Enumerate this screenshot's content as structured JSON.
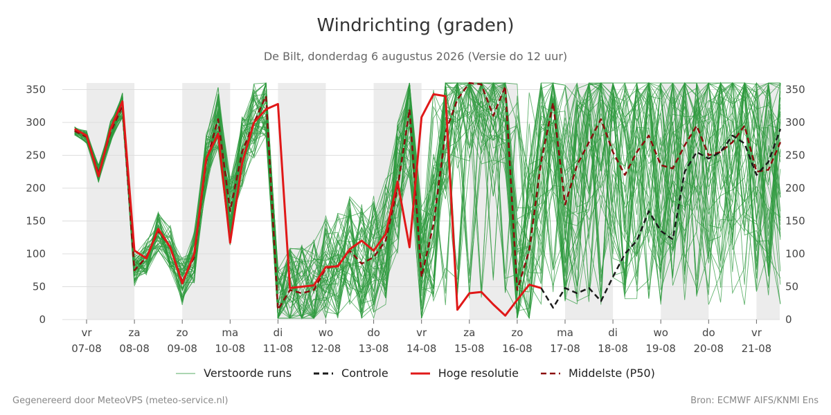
{
  "title": "Windrichting (graden)",
  "subtitle": "De Bilt, donderdag  6 augustus 2026 (Versie do 12 uur)",
  "footer_left": "Gegenereerd door MeteoVPS (meteo-service.nl)",
  "footer_right": "Bron: ECMWF AIFS/KNMI Ens",
  "legend": {
    "ensemble": "Verstoorde runs",
    "control": "Controle",
    "hires": "Hoge resolutie",
    "median": "Middelste (P50)"
  },
  "colors": {
    "ensemble": "#2e9a3e",
    "control": "#1a1a1a",
    "hires": "#e01818",
    "median": "#8b0d0d",
    "weekend_band": "#ececec",
    "grid": "#dddddd"
  },
  "chart_data": {
    "type": "line",
    "title": "Windrichting (graden)",
    "ylim": [
      0,
      360
    ],
    "yticks": [
      0,
      50,
      100,
      150,
      200,
      250,
      300,
      350
    ],
    "xlim": [
      -0.25,
      14.6
    ],
    "x_unit": "days from 07-08 00:00",
    "x_ticks": [
      {
        "day": "vr",
        "date": "07-08"
      },
      {
        "day": "za",
        "date": "08-08"
      },
      {
        "day": "zo",
        "date": "09-08"
      },
      {
        "day": "ma",
        "date": "10-08"
      },
      {
        "day": "di",
        "date": "11-08"
      },
      {
        "day": "wo",
        "date": "12-08"
      },
      {
        "day": "do",
        "date": "13-08"
      },
      {
        "day": "vr",
        "date": "14-08"
      },
      {
        "day": "za",
        "date": "15-08"
      },
      {
        "day": "zo",
        "date": "16-08"
      },
      {
        "day": "ma",
        "date": "17-08"
      },
      {
        "day": "di",
        "date": "18-08"
      },
      {
        "day": "wo",
        "date": "19-08"
      },
      {
        "day": "do",
        "date": "20-08"
      },
      {
        "day": "vr",
        "date": "21-08"
      }
    ],
    "grey_bands": [
      [
        0,
        1
      ],
      [
        2,
        3
      ],
      [
        4,
        5
      ],
      [
        6,
        7
      ],
      [
        8,
        9
      ],
      [
        10,
        11
      ],
      [
        12,
        13
      ],
      [
        14,
        14.6
      ]
    ],
    "grid": true,
    "legend_position": "bottom",
    "series": [
      {
        "name": "Hoge resolutie",
        "style": "solid",
        "x": [
          -0.25,
          -0.12,
          0,
          0.25,
          0.5,
          0.75,
          1,
          1.25,
          1.5,
          1.75,
          2,
          2.25,
          2.5,
          2.75,
          3,
          3.25,
          3.5,
          3.75,
          4,
          4.25,
          4.5,
          4.75,
          5,
          5.25,
          5.5,
          5.75,
          6,
          6.25,
          6.5,
          6.75,
          7,
          7.25,
          7.5,
          7.75,
          8,
          8.25,
          8.5,
          8.75,
          9,
          9.25,
          9.5
        ],
        "y": [
          290,
          285,
          280,
          218,
          290,
          332,
          105,
          93,
          138,
          110,
          55,
          100,
          245,
          283,
          117,
          238,
          300,
          320,
          328,
          48,
          50,
          52,
          80,
          81,
          107,
          120,
          105,
          130,
          210,
          110,
          308,
          343,
          340,
          15,
          40,
          42,
          23,
          6,
          30,
          53,
          48
        ]
      },
      {
        "name": "Middelste (P50)",
        "style": "dashed",
        "x": [
          -0.25,
          -0.12,
          0,
          0.25,
          0.5,
          0.75,
          1,
          1.25,
          1.5,
          1.75,
          2,
          2.25,
          2.5,
          2.75,
          3,
          3.25,
          3.5,
          3.75,
          4,
          4.25,
          4.5,
          4.75,
          5,
          5.25,
          5.5,
          5.75,
          6,
          6.25,
          6.5,
          6.75,
          7,
          7.25,
          7.5,
          7.75,
          8,
          8.25,
          8.5,
          8.75,
          9,
          9.25,
          9.5,
          9.75,
          10,
          10.25,
          10.5,
          10.75,
          11,
          11.25,
          11.5,
          11.75,
          12,
          12.25,
          12.5,
          12.75,
          13,
          13.25,
          13.5,
          13.75,
          14,
          14.25,
          14.5
        ],
        "y": [
          287,
          282,
          278,
          222,
          285,
          325,
          75,
          95,
          135,
          110,
          58,
          95,
          240,
          305,
          165,
          255,
          300,
          340,
          15,
          45,
          40,
          45,
          78,
          82,
          105,
          85,
          95,
          120,
          200,
          320,
          65,
          145,
          285,
          335,
          360,
          358,
          310,
          355,
          45,
          105,
          240,
          330,
          175,
          235,
          270,
          305,
          255,
          220,
          255,
          280,
          235,
          230,
          265,
          295,
          250,
          255,
          270,
          295,
          225,
          228,
          270
        ]
      },
      {
        "name": "Controle",
        "style": "dashed",
        "x": [
          9.5,
          9.75,
          10,
          10.25,
          10.5,
          10.75,
          11,
          11.25,
          11.5,
          11.75,
          12,
          12.25,
          12.5,
          12.75,
          13,
          13.25,
          13.5,
          13.75,
          14,
          14.25,
          14.5
        ],
        "y": [
          48,
          18,
          48,
          40,
          48,
          28,
          65,
          100,
          120,
          165,
          135,
          122,
          225,
          255,
          245,
          255,
          280,
          268,
          220,
          240,
          290
        ]
      }
    ]
  }
}
